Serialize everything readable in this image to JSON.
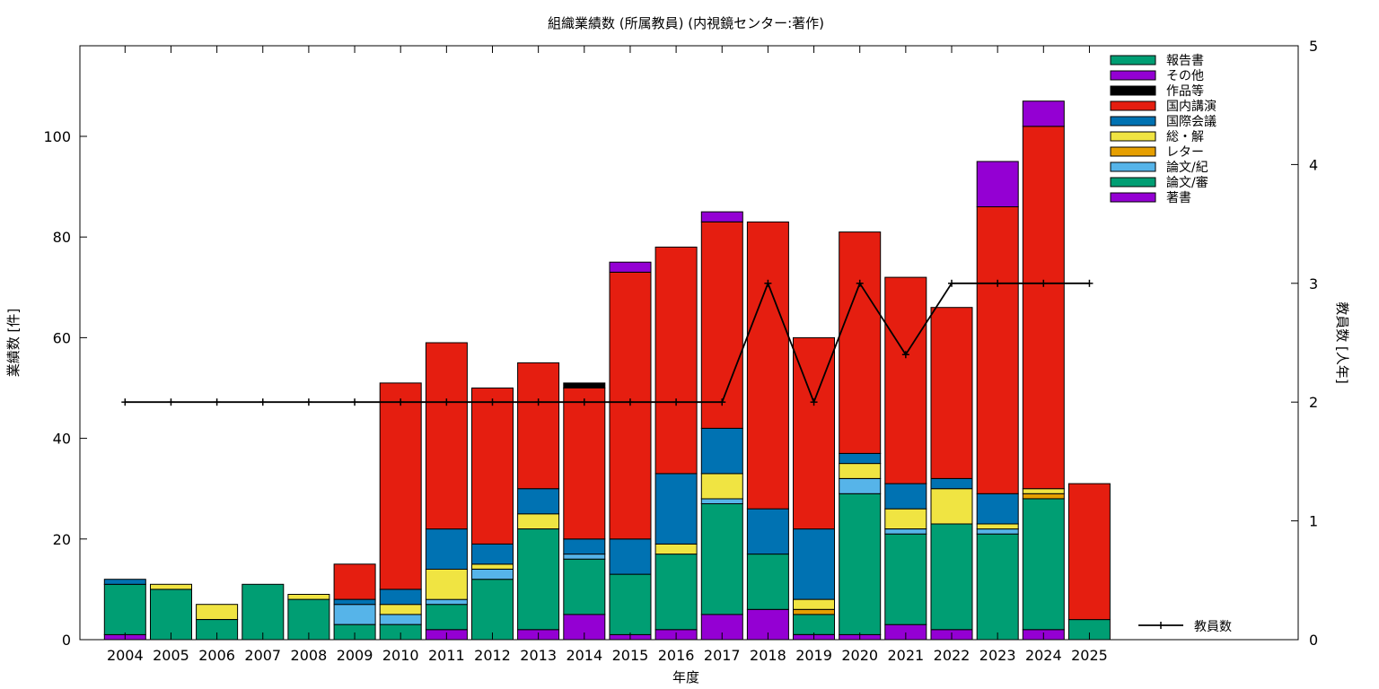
{
  "chart_data": {
    "type": "bar",
    "stacked": true,
    "title": "組織業績数 (所属教員) (内視鏡センター:著作)",
    "xlabel": "年度",
    "ylabel": "業績数 [件]",
    "y2label": "教員数 [人年]",
    "ylim": [
      0,
      118
    ],
    "y2lim": [
      0,
      5
    ],
    "yticks": [
      0,
      20,
      40,
      60,
      80,
      100
    ],
    "y2ticks": [
      0,
      1,
      2,
      3,
      4,
      5
    ],
    "grid": false,
    "legend_position": "top-right",
    "categories": [
      "2004",
      "2005",
      "2006",
      "2007",
      "2008",
      "2009",
      "2010",
      "2011",
      "2012",
      "2013",
      "2014",
      "2015",
      "2016",
      "2017",
      "2018",
      "2019",
      "2020",
      "2021",
      "2022",
      "2023",
      "2024",
      "2025"
    ],
    "series": [
      {
        "name": "著書",
        "color": "#9400d3",
        "values": [
          1,
          0,
          0,
          0,
          0,
          0,
          0,
          2,
          0,
          2,
          5,
          1,
          2,
          5,
          6,
          1,
          1,
          3,
          2,
          0,
          2,
          0
        ]
      },
      {
        "name": "論文/審",
        "color": "#009e73",
        "values": [
          10,
          10,
          4,
          11,
          8,
          3,
          3,
          5,
          12,
          20,
          11,
          12,
          15,
          22,
          11,
          4,
          28,
          18,
          21,
          21,
          26,
          4
        ]
      },
      {
        "name": "論文/紀",
        "color": "#56b4e9",
        "values": [
          0,
          0,
          0,
          0,
          0,
          4,
          2,
          1,
          2,
          0,
          1,
          0,
          0,
          1,
          0,
          0,
          3,
          1,
          0,
          1,
          0,
          0
        ]
      },
      {
        "name": "レター",
        "color": "#e69f00",
        "values": [
          0,
          0,
          0,
          0,
          0,
          0,
          0,
          0,
          0,
          0,
          0,
          0,
          0,
          0,
          0,
          1,
          0,
          0,
          0,
          0,
          1,
          0
        ]
      },
      {
        "name": "総・解",
        "color": "#f0e442",
        "values": [
          0,
          1,
          3,
          0,
          1,
          0,
          2,
          6,
          1,
          3,
          0,
          0,
          2,
          5,
          0,
          2,
          3,
          4,
          7,
          1,
          1,
          0
        ]
      },
      {
        "name": "国際会議",
        "color": "#0072b2",
        "values": [
          1,
          0,
          0,
          0,
          0,
          1,
          3,
          8,
          4,
          5,
          3,
          7,
          14,
          9,
          9,
          14,
          2,
          5,
          2,
          6,
          0,
          0
        ]
      },
      {
        "name": "国内講演",
        "color": "#e51e10",
        "values": [
          0,
          0,
          0,
          0,
          0,
          7,
          41,
          37,
          31,
          25,
          30,
          53,
          45,
          41,
          57,
          38,
          44,
          41,
          34,
          57,
          72,
          27
        ]
      },
      {
        "name": "作品等",
        "color": "#000000",
        "values": [
          0,
          0,
          0,
          0,
          0,
          0,
          0,
          0,
          0,
          0,
          1,
          0,
          0,
          0,
          0,
          0,
          0,
          0,
          0,
          0,
          0,
          0
        ]
      },
      {
        "name": "その他",
        "color": "#9400d3",
        "values": [
          0,
          0,
          0,
          0,
          0,
          0,
          0,
          0,
          0,
          0,
          0,
          2,
          0,
          2,
          0,
          0,
          0,
          0,
          0,
          9,
          5,
          0
        ]
      },
      {
        "name": "報告書",
        "color": "#009e73",
        "values": [
          0,
          0,
          0,
          0,
          0,
          0,
          0,
          0,
          0,
          0,
          0,
          0,
          0,
          0,
          0,
          0,
          0,
          0,
          0,
          0,
          0,
          0
        ]
      }
    ],
    "line_series": {
      "name": "教員数",
      "axis": "y2",
      "color": "#000000",
      "x": [
        "2004",
        "2005",
        "2006",
        "2007",
        "2008",
        "2009",
        "2010",
        "2011",
        "2012",
        "2013",
        "2014",
        "2015",
        "2016",
        "2017",
        "2018",
        "2019",
        "2020",
        "2021",
        "2022",
        "2023",
        "2024",
        "2025"
      ],
      "values": [
        2,
        2,
        2,
        2,
        2,
        2,
        2,
        2,
        2,
        2,
        2,
        2,
        2,
        2,
        3,
        2,
        3,
        2.4,
        3,
        3,
        3,
        3
      ]
    }
  }
}
